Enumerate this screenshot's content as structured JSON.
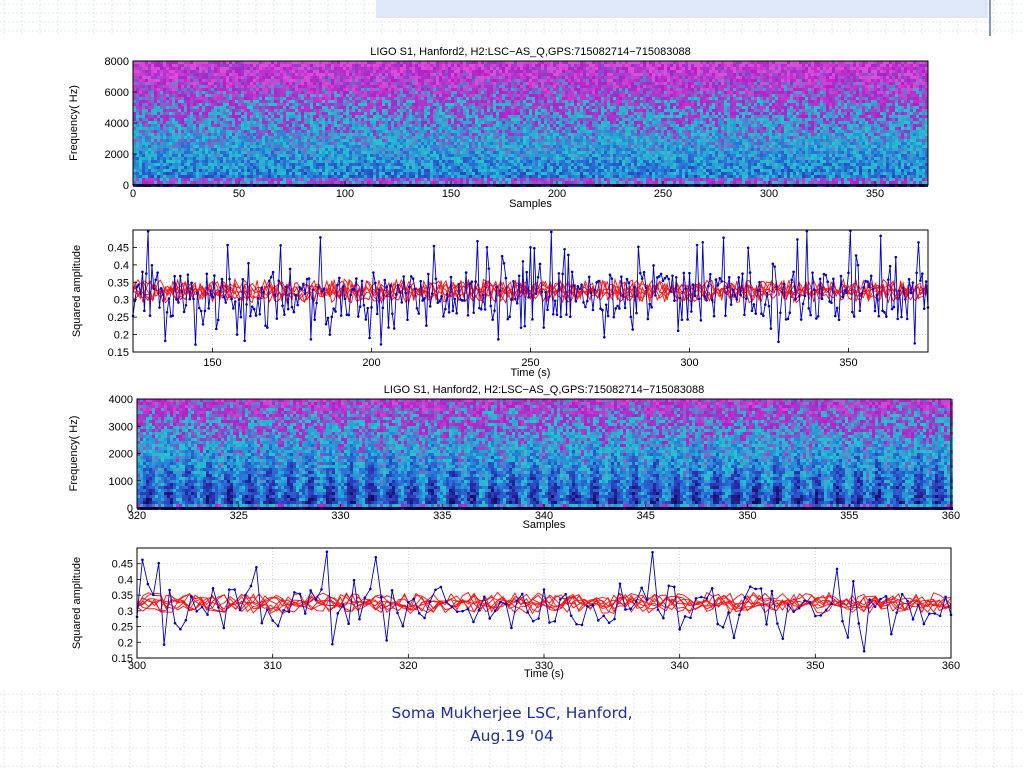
{
  "footer": {
    "line1": "Soma Mukherjee LSC, Hanford,",
    "line2": "Aug.19 '04"
  },
  "chart_data": [
    {
      "type": "heatmap",
      "title": "LIGO S1, Hanford2, H2:LSC−AS_Q,GPS:715082714−715083088",
      "xlabel": "Samples",
      "ylabel": "Frequency( Hz)",
      "xlim": [
        0,
        375
      ],
      "ylim": [
        0,
        8000
      ],
      "xticks": [
        "0",
        "50",
        "100",
        "150",
        "200",
        "250",
        "300",
        "350"
      ],
      "yticks": [
        "0",
        "2000",
        "4000",
        "6000",
        "8000"
      ],
      "colormap": [
        "#140a5a",
        "#2a2fb0",
        "#2a6fd8",
        "#22c8d0",
        "#b01ec8",
        "#d84fd8"
      ]
    },
    {
      "type": "line",
      "xlabel": "Time (s)",
      "ylabel": "Squared amplitude",
      "xlim": [
        125,
        375
      ],
      "ylim": [
        0.15,
        0.5
      ],
      "xticks": [
        "150",
        "200",
        "250",
        "300",
        "350"
      ],
      "yticks": [
        "0.15",
        "0.2",
        "0.25",
        "0.3",
        "0.35",
        "0.4",
        "0.45"
      ],
      "grid": true,
      "series_colors": [
        "#0000cc",
        "#ff0000"
      ]
    },
    {
      "type": "heatmap",
      "title": "LIGO S1, Hanford2, H2:LSC−AS_Q,GPS:715082714−715083088",
      "xlabel": "Samples",
      "ylabel": "Frequency( Hz)",
      "xlim": [
        320,
        360
      ],
      "ylim": [
        0,
        4000
      ],
      "xticks": [
        "320",
        "325",
        "330",
        "335",
        "340",
        "345",
        "350",
        "355",
        "360"
      ],
      "yticks": [
        "0",
        "1000",
        "2000",
        "3000",
        "4000"
      ],
      "colormap": [
        "#140a5a",
        "#2a2fb0",
        "#2a6fd8",
        "#22c8d0",
        "#b01ec8",
        "#d84fd8"
      ]
    },
    {
      "type": "line",
      "xlabel": "Time (s)",
      "ylabel": "Squared amplitude",
      "xlim": [
        300,
        360
      ],
      "ylim": [
        0.15,
        0.5
      ],
      "xticks": [
        "300",
        "310",
        "320",
        "330",
        "340",
        "350",
        "360"
      ],
      "yticks": [
        "0.15",
        "0.2",
        "0.25",
        "0.3",
        "0.35",
        "0.4",
        "0.45"
      ],
      "grid": true,
      "series_colors": [
        "#0000cc",
        "#ff0000"
      ]
    }
  ]
}
